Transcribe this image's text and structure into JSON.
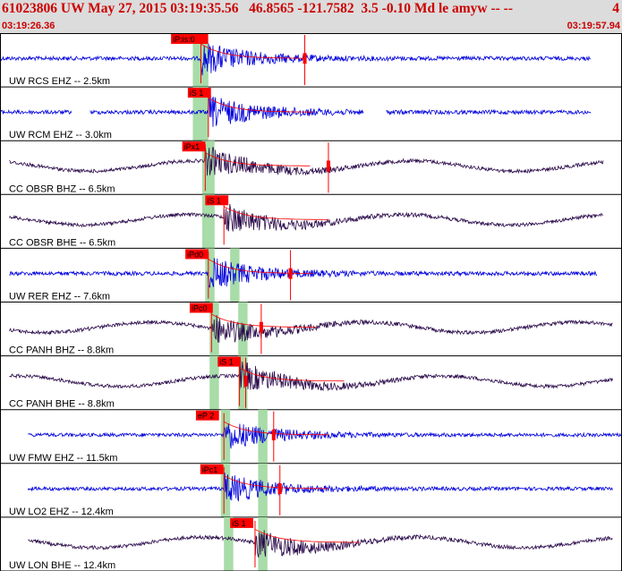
{
  "header": {
    "title": "61023806 UW May 27, 2015 03:19:35.56   46.8565 -121.7582  3.5 -0.10 Md le amyw -- --",
    "title_extra": "4",
    "start_time": "03:19:26.36",
    "end_time": "03:19:57.94"
  },
  "colors": {
    "header_bg": "#dcdcdc",
    "header_text": "#cc0000",
    "trace_blue": "#0000dd",
    "trace_dark": "#2a0a4a",
    "pick_red": "#ff0000",
    "window_green": "#a8dca8",
    "label_text": "#000000"
  },
  "traces": [
    {
      "label": "UW RCS EHZ -- 2.5km",
      "color": "blue",
      "pick_label": "iP:is:0",
      "pick_pos": 0.323,
      "marker_pos": 0.49,
      "amp": 0.6,
      "data_start": 0.0,
      "data_end": 0.95,
      "gaps": [],
      "green": [
        0.31,
        0.335
      ],
      "pick_label_left": 0.275
    },
    {
      "label": "UW RCM EHZ -- 3.0km",
      "color": "blue",
      "pick_label": "iS 1",
      "pick_pos": 0.335,
      "marker_pos": null,
      "amp": 0.6,
      "data_start": 0.0,
      "data_end": 0.95,
      "gaps": [
        [
          0.115,
          0.145
        ],
        [
          0.585,
          0.62
        ]
      ],
      "green": [
        0.31,
        0.335
      ],
      "pick_label_left": 0.302
    },
    {
      "label": "CC OBSR BHZ -- 6.5km",
      "color": "dark",
      "pick_label": "iPx1",
      "pick_pos": 0.33,
      "marker_pos": 0.528,
      "amp": 0.55,
      "data_start": 0.015,
      "data_end": 0.97,
      "gaps": [],
      "green": [
        0.325,
        0.345
      ],
      "pick_label_left": 0.293
    },
    {
      "label": "CC OBSR BHE -- 6.5km",
      "color": "dark",
      "pick_label": "iS 1",
      "pick_pos": 0.36,
      "marker_pos": null,
      "amp": 0.55,
      "data_start": 0.015,
      "data_end": 0.97,
      "gaps": [],
      "green": [
        0.325,
        0.345
      ],
      "pick_label_left": 0.33
    },
    {
      "label": "UW RER EHZ -- 7.6km",
      "color": "blue",
      "pick_label": "iPd0",
      "pick_pos": 0.335,
      "marker_pos": 0.467,
      "amp": 0.6,
      "data_start": 0.015,
      "data_end": 0.96,
      "gaps": [],
      "green": [
        0.33,
        0.345,
        0.37,
        0.385
      ],
      "pick_label_left": 0.298
    },
    {
      "label": "CC PANH BHZ -- 8.8km",
      "color": "dark",
      "pick_label": "iPc0",
      "pick_pos": 0.34,
      "marker_pos": 0.42,
      "amp": 0.55,
      "data_start": 0.015,
      "data_end": 0.985,
      "gaps": [],
      "green": [
        0.337,
        0.352,
        0.383,
        0.398
      ],
      "pick_label_left": 0.305
    },
    {
      "label": "CC PANH BHE -- 8.8km",
      "color": "dark",
      "pick_label": "iS 1",
      "pick_pos": 0.385,
      "marker_pos": 0.395,
      "amp": 0.55,
      "data_start": 0.015,
      "data_end": 0.985,
      "gaps": [],
      "green": [
        0.337,
        0.352,
        0.383,
        0.398
      ],
      "pick_label_left": 0.35
    },
    {
      "label": "UW FMW EHZ -- 11.5km",
      "color": "blue",
      "pick_label": "eP 2",
      "pick_pos": 0.36,
      "marker_pos": 0.44,
      "amp": 0.55,
      "data_start": 0.045,
      "data_end": 1.0,
      "gaps": [],
      "green": [
        0.355,
        0.37,
        0.415,
        0.43
      ],
      "pick_label_left": 0.315
    },
    {
      "label": "UW LO2 EHZ -- 12.4km",
      "color": "blue",
      "pick_label": "iPc1",
      "pick_pos": 0.36,
      "marker_pos": 0.45,
      "amp": 0.55,
      "data_start": 0.045,
      "data_end": 0.985,
      "gaps": [],
      "green": [
        0.355,
        0.37,
        0.415,
        0.43
      ],
      "pick_label_left": 0.322
    },
    {
      "label": "UW LON BHE -- 12.4km",
      "color": "dark",
      "pick_label": "iS 1",
      "pick_pos": 0.41,
      "marker_pos": null,
      "amp": 0.55,
      "data_start": 0.045,
      "data_end": 0.985,
      "gaps": [],
      "green": [
        0.36,
        0.375,
        0.415,
        0.43
      ],
      "pick_label_left": 0.37
    }
  ]
}
